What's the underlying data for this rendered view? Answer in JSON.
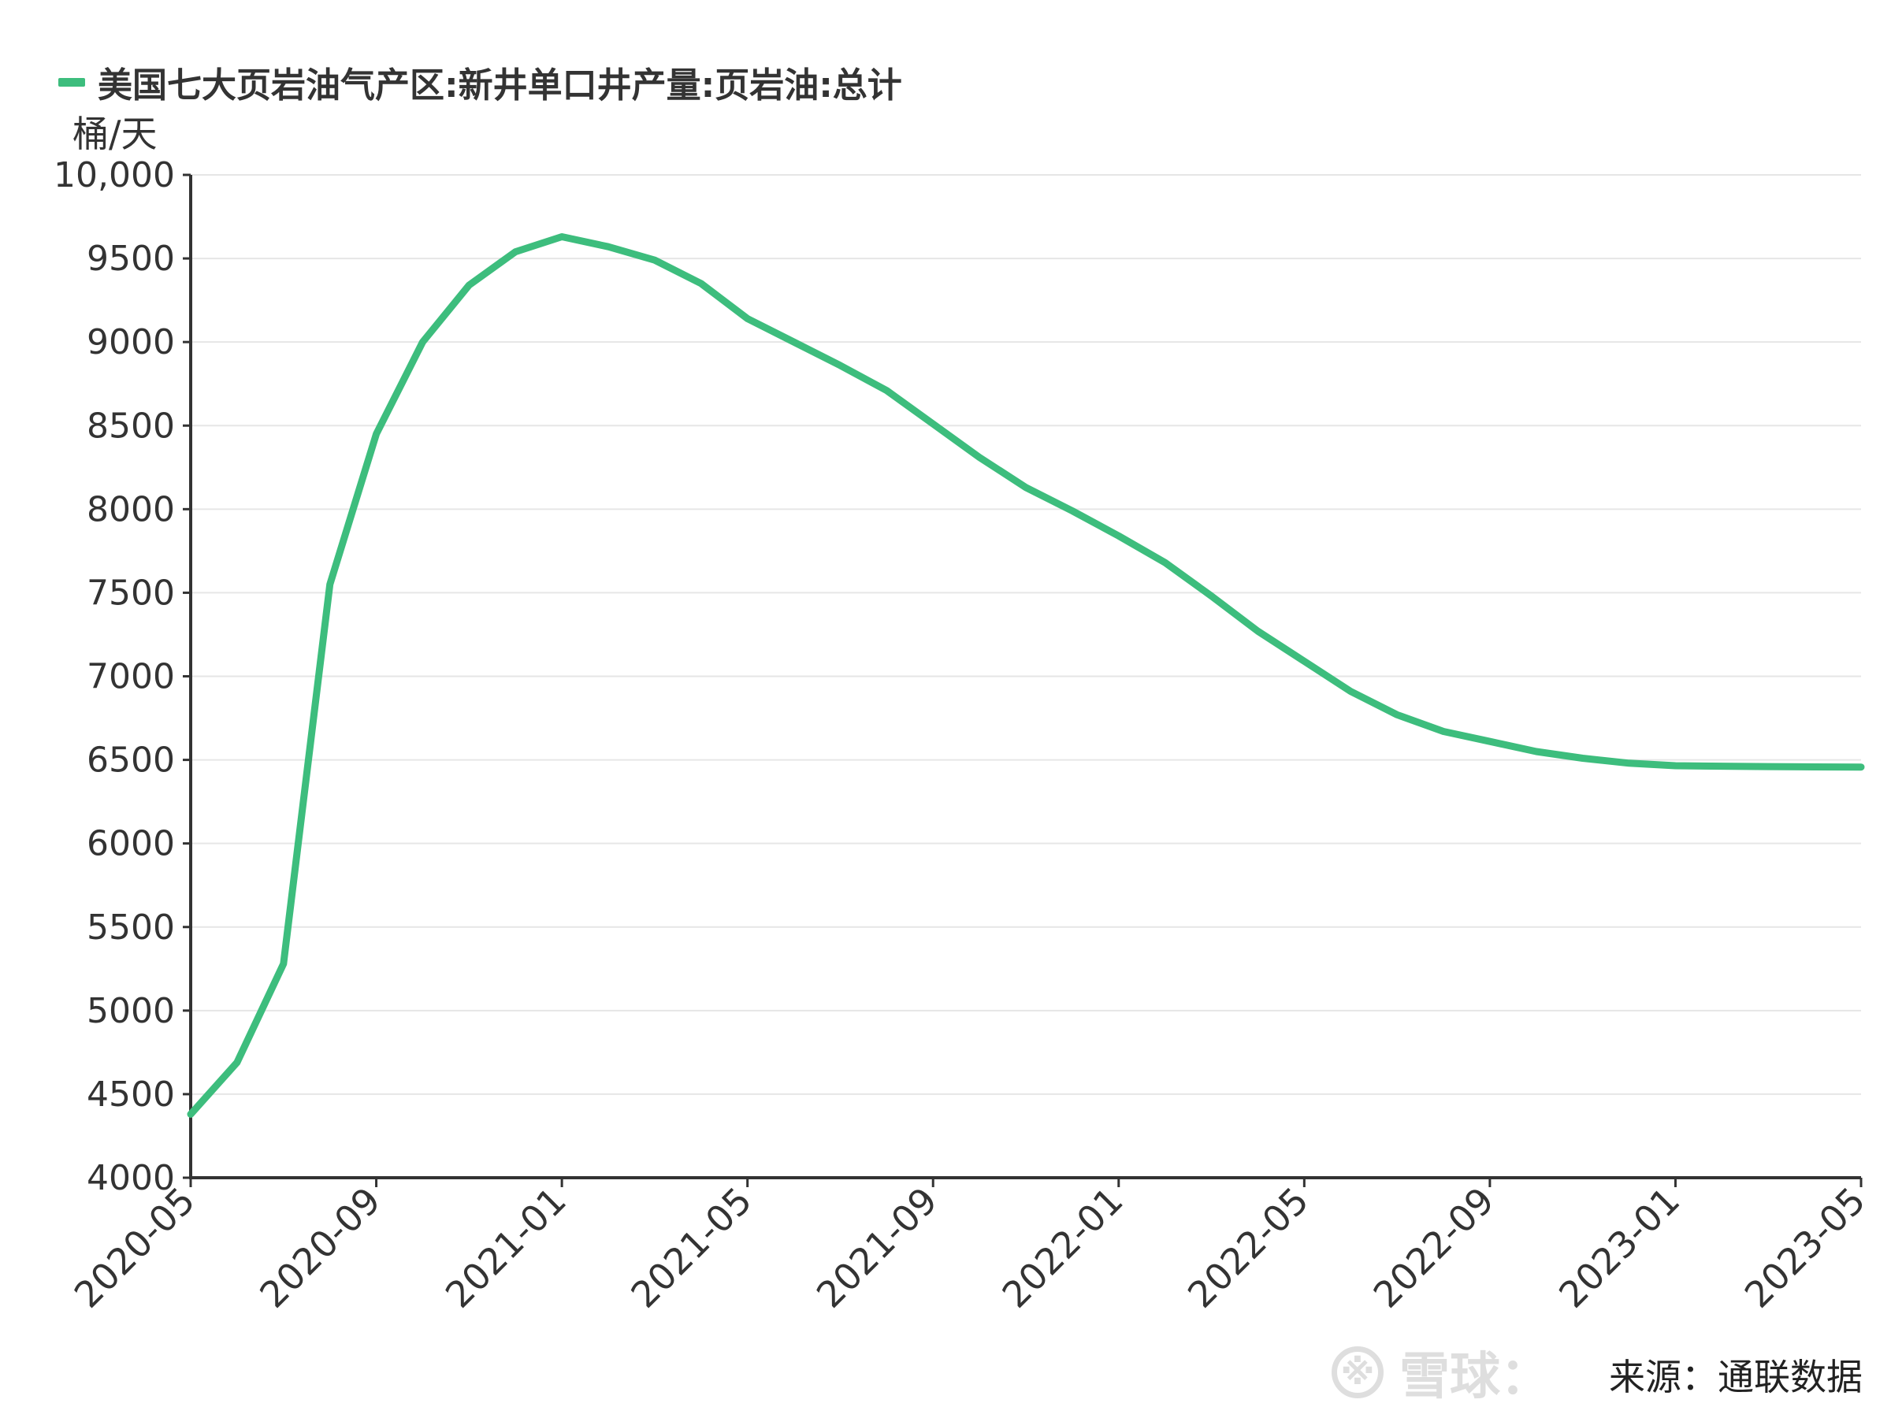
{
  "chart_data": {
    "type": "line",
    "title": "",
    "ylabel": "桶/天",
    "xlabel": "",
    "ylim": [
      4000,
      10000
    ],
    "y_ticks": [
      "4000",
      "4500",
      "5000",
      "5500",
      "6000",
      "6500",
      "7000",
      "7500",
      "8000",
      "8500",
      "9000",
      "9500",
      "10,000"
    ],
    "y_tick_values": [
      4000,
      4500,
      5000,
      5500,
      6000,
      6500,
      7000,
      7500,
      8000,
      8500,
      9000,
      9500,
      10000
    ],
    "x_ticks": [
      "2020-05",
      "2020-09",
      "2021-01",
      "2021-05",
      "2021-09",
      "2022-01",
      "2022-05",
      "2022-09",
      "2023-01",
      "2023-05"
    ],
    "grid": true,
    "legend_position": "top-left",
    "categories": [
      "2020-05",
      "2020-06",
      "2020-07",
      "2020-08",
      "2020-09",
      "2020-10",
      "2020-11",
      "2020-12",
      "2021-01",
      "2021-02",
      "2021-03",
      "2021-04",
      "2021-05",
      "2021-06",
      "2021-07",
      "2021-08",
      "2021-09",
      "2021-10",
      "2021-11",
      "2021-12",
      "2022-01",
      "2022-02",
      "2022-03",
      "2022-04",
      "2022-05",
      "2022-06",
      "2022-07",
      "2022-08",
      "2022-09",
      "2022-10",
      "2022-11",
      "2022-12",
      "2023-01",
      "2023-02",
      "2023-03",
      "2023-04",
      "2023-05"
    ],
    "series": [
      {
        "name": "美国七大页岩油气产区:新井单口井产量:页岩油:总计",
        "color": "#3dbd7d",
        "values": [
          4380,
          4690,
          5280,
          7550,
          8450,
          9000,
          9340,
          9540,
          9630,
          9570,
          9490,
          9350,
          9140,
          9000,
          8860,
          8710,
          8510,
          8310,
          8130,
          7990,
          7840,
          7680,
          7480,
          7270,
          7090,
          6910,
          6770,
          6670,
          6610,
          6550,
          6510,
          6480,
          6465,
          6462,
          6460,
          6458,
          6457
        ]
      }
    ],
    "source": "来源：通联数据",
    "watermark": "雪球："
  }
}
